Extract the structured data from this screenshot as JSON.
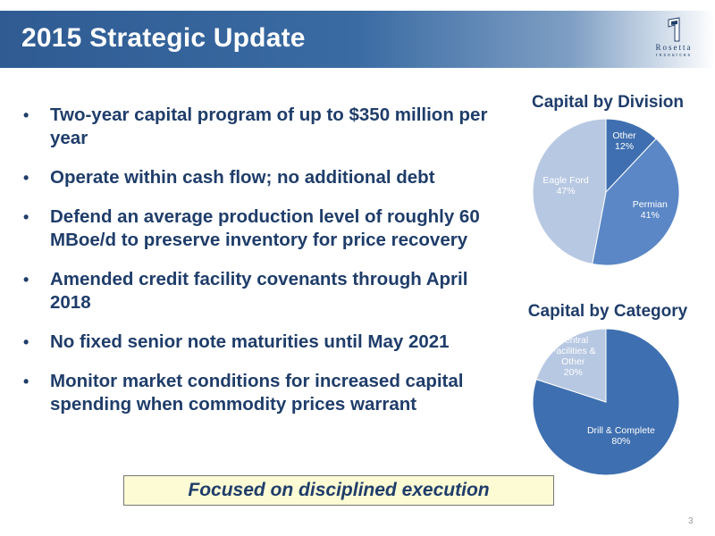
{
  "header": {
    "title": "2015 Strategic Update",
    "logo": {
      "name": "Rosetta",
      "sub": "resources"
    }
  },
  "bullets": [
    "Two-year capital program of up to $350 million per year",
    "Operate within cash flow; no additional debt",
    "Defend an average production level of roughly 60 MBoe/d to preserve inventory for price recovery",
    "Amended credit facility covenants through April 2018",
    "No fixed senior note maturities until May 2021",
    "Monitor market conditions for increased capital spending when commodity prices warrant"
  ],
  "callout": "Focused on disciplined execution",
  "page_number": "3",
  "colors": {
    "banner": "#2f5b92",
    "text": "#1f3d6a",
    "callout_bg": "#fdfbd4"
  },
  "chart_data": [
    {
      "type": "pie",
      "title": "Capital by Division",
      "slices": [
        {
          "label": "Other",
          "value": 12,
          "value_label": "12%",
          "color": "#3f6fb0"
        },
        {
          "label": "Permian",
          "value": 41,
          "value_label": "41%",
          "color": "#5b87c6"
        },
        {
          "label": "Eagle Ford",
          "value": 47,
          "value_label": "47%",
          "color": "#b7c8e2"
        }
      ]
    },
    {
      "type": "pie",
      "title": "Capital by Category",
      "slices": [
        {
          "label": "Drill & Complete",
          "value": 80,
          "value_label": "80%",
          "color": "#3e6fb0"
        },
        {
          "label": "Central Facilities & Other",
          "value": 20,
          "value_label": "20%",
          "color": "#b7c8e2"
        }
      ]
    }
  ]
}
